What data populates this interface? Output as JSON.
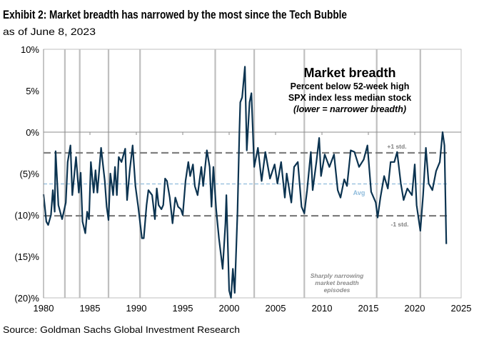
{
  "header": {
    "title": "Exhibit 2: Market breadth has narrowed by the most since the Tech Bubble",
    "subtitle": "as of June 8, 2023"
  },
  "footer": {
    "source": "Source: Goldman Sachs Global Investment Research"
  },
  "chart_data": {
    "type": "line",
    "title": "Market breadth",
    "subtitle_lines": [
      "Percent below 52-week high",
      "SPX index less median stock",
      "(lower = narrower breadth)"
    ],
    "xlim": [
      1980,
      2025
    ],
    "ylim": [
      -20,
      10
    ],
    "x_ticks": [
      1980,
      1985,
      1990,
      1995,
      2000,
      2005,
      2010,
      2015,
      2020,
      2025
    ],
    "x_tick_labels": [
      "1980",
      "1985",
      "1990",
      "1995",
      "2000",
      "2005",
      "2010",
      "2015",
      "2020",
      "2025"
    ],
    "y_ticks": [
      10,
      5,
      0,
      -5,
      -10,
      -15,
      -20
    ],
    "y_tick_labels": [
      "10%",
      "5%",
      "0%",
      "(5)%",
      "(10)%",
      "(15)%",
      "(20)%"
    ],
    "line_color": "#0b3350",
    "reference_lines": [
      {
        "label": "+1 std.",
        "value": -2.5,
        "style": "dashed",
        "color": "#7f7f7f"
      },
      {
        "label": "Avg",
        "value": -6.25,
        "style": "dashed",
        "color": "#8fbcdc"
      },
      {
        "label": "-1 std.",
        "value": -10.1,
        "style": "dashed",
        "color": "#7f7f7f"
      }
    ],
    "episode_markers": [
      1982.3,
      1983.9,
      1987.0,
      1990.4,
      1998.5,
      2002.7,
      2008.1,
      2015.9,
      2020.6
    ],
    "episode_label_lines": [
      "Sharply narrowing",
      "market breadth",
      "episodes"
    ],
    "series": [
      {
        "x": [
          1980.0,
          1980.3,
          1980.5,
          1980.8,
          1981.0,
          1981.2,
          1981.3,
          1981.6,
          1982.0,
          1982.4,
          1982.6,
          1982.9,
          1983.1,
          1983.5,
          1983.8,
          1984.0,
          1984.2,
          1984.5,
          1984.7,
          1984.9,
          1985.1,
          1985.4,
          1985.6,
          1985.8,
          1986.2,
          1986.6,
          1986.8,
          1987.0,
          1987.2,
          1987.5,
          1987.7,
          1987.9,
          1988.1,
          1988.4,
          1988.8,
          1989.0,
          1989.3,
          1989.6,
          1989.9,
          1990.2,
          1990.6,
          1990.8,
          1991.1,
          1991.3,
          1991.7,
          1992.0,
          1992.2,
          1992.4,
          1992.7,
          1992.9,
          1993.1,
          1993.3,
          1993.6,
          1993.9,
          1994.2,
          1994.5,
          1994.8,
          1995.0,
          1995.3,
          1995.6,
          1995.8,
          1996.1,
          1996.3,
          1996.6,
          1997.0,
          1997.2,
          1997.6,
          1997.9,
          1998.1,
          1998.3,
          1998.6,
          1998.9,
          1999.3,
          1999.6,
          1999.7,
          2000.0,
          2000.2,
          2000.4,
          2000.6,
          2000.9,
          2001.1,
          2001.2,
          2001.4,
          2001.7,
          2001.9,
          2002.2,
          2002.4,
          2002.7,
          2003.1,
          2003.5,
          2003.9,
          2004.4,
          2004.9,
          2005.2,
          2005.6,
          2006.0,
          2006.2,
          2006.7,
          2007.0,
          2007.4,
          2007.8,
          2008.1,
          2008.4,
          2008.8,
          2009.0,
          2009.4,
          2009.7,
          2009.9,
          2010.3,
          2010.8,
          2011.3,
          2011.7,
          2012.0,
          2012.4,
          2012.7,
          2013.1,
          2013.5,
          2014.0,
          2014.5,
          2014.9,
          2015.3,
          2015.8,
          2016.0,
          2016.3,
          2016.7,
          2017.1,
          2017.4,
          2017.8,
          2018.1,
          2018.5,
          2018.8,
          2019.2,
          2019.7,
          2020.0,
          2020.2,
          2020.6,
          2020.9,
          2021.2,
          2021.5,
          2021.9,
          2022.3,
          2022.7,
          2023.0,
          2023.2,
          2023.4
        ],
        "y": [
          -7.5,
          -10.8,
          -11.2,
          -10.0,
          -7.0,
          -9.6,
          -2.3,
          -8.8,
          -10.5,
          -8.5,
          -3.6,
          -1.6,
          -7.6,
          -3.0,
          -7.3,
          -4.9,
          -10.8,
          -12.2,
          -9.6,
          -10.5,
          -3.6,
          -7.3,
          -4.6,
          -7.3,
          -1.9,
          -5.9,
          -9.0,
          -10.6,
          -5.0,
          -7.6,
          -4.2,
          -7.6,
          -3.0,
          -3.6,
          -2.0,
          -8.2,
          -4.5,
          -1.6,
          -6.5,
          -9.0,
          -12.8,
          -12.8,
          -8.8,
          -7.0,
          -7.6,
          -10.5,
          -6.8,
          -8.8,
          -9.3,
          -8.8,
          -5.6,
          -5.9,
          -7.9,
          -11.0,
          -7.9,
          -9.0,
          -9.3,
          -10.0,
          -5.9,
          -3.6,
          -5.3,
          -3.9,
          -6.5,
          -7.6,
          -4.2,
          -6.5,
          -2.2,
          -4.2,
          -9.0,
          -4.2,
          -9.3,
          -12.8,
          -16.5,
          -11.0,
          -7.6,
          -19.1,
          -20.0,
          -16.5,
          -19.4,
          -9.6,
          -0.1,
          3.6,
          4.2,
          7.9,
          -2.2,
          3.6,
          4.7,
          -4.2,
          -1.9,
          -5.9,
          -2.4,
          -5.6,
          -3.9,
          -6.2,
          -3.6,
          -7.9,
          -5.0,
          -8.5,
          -4.2,
          -3.6,
          -9.0,
          -9.8,
          -7.0,
          -2.4,
          -7.0,
          -3.6,
          -0.7,
          -5.3,
          -2.7,
          -4.2,
          -2.7,
          -7.0,
          -7.9,
          -5.7,
          -6.5,
          -2.2,
          -2.4,
          -4.2,
          -3.3,
          -1.6,
          -7.2,
          -8.5,
          -10.3,
          -7.9,
          -5.3,
          -6.8,
          -3.6,
          -3.6,
          -2.4,
          -6.2,
          -8.2,
          -6.8,
          -7.6,
          -3.9,
          -8.8,
          -11.9,
          -7.6,
          -1.9,
          -6.2,
          -7.0,
          -4.7,
          -3.6,
          0.0,
          -1.6,
          -13.5
        ]
      }
    ]
  }
}
